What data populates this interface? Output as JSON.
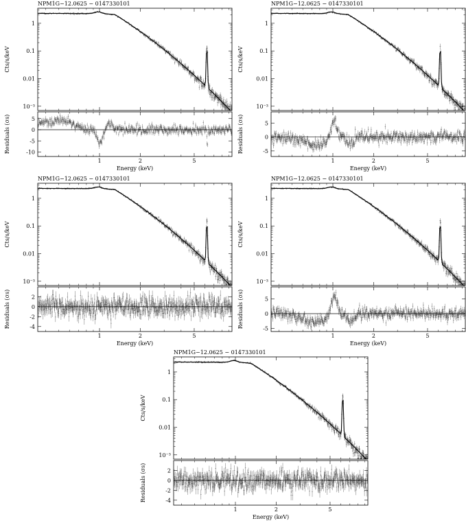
{
  "figure": {
    "x_label": "Energy (keV)",
    "y_label_top": "Cts/s/keV",
    "y_label_bottom": "Residuals (σs)",
    "spectrum_ytick_labels": [
      "1",
      "0.1",
      "0.01",
      "10⁻³"
    ],
    "x_tick_labels": [
      "1",
      "2",
      "5"
    ]
  },
  "chart_data": [
    {
      "type": "line",
      "title": "NPM1G−12.0625 − 0147330101",
      "xlabel": "Energy (keV)",
      "ylabel": "Cts/s/keV",
      "xscale": "log",
      "yscale": "log",
      "xlim": [
        0.35,
        9.5
      ],
      "ylim": [
        0.0007,
        3.5
      ],
      "spectrum_profile": "model",
      "line_energy": 6.2,
      "residuals": {
        "ylabel": "Residuals (σs)",
        "ylim": [
          -12,
          8
        ],
        "yticks": [
          5,
          0,
          -5,
          -10
        ],
        "pattern": "dip",
        "line_dip": true
      }
    },
    {
      "type": "line",
      "title": "NPM1G−12.0625 − 0147330101",
      "xlabel": "Energy (keV)",
      "ylabel": "Cts/s/keV",
      "xscale": "log",
      "yscale": "log",
      "xlim": [
        0.35,
        9.5
      ],
      "ylim": [
        0.0007,
        3.5
      ],
      "spectrum_profile": "model",
      "line_energy": 6.2,
      "residuals": {
        "ylabel": "Residuals (σs)",
        "ylim": [
          -7,
          9
        ],
        "yticks": [
          5,
          0,
          -5
        ],
        "pattern": "bump",
        "line_dip": false
      }
    },
    {
      "type": "line",
      "title": "NPM1G−12.0625 − 0147330101",
      "xlabel": "Energy (keV)",
      "ylabel": "Cts/s/keV",
      "xscale": "log",
      "yscale": "log",
      "xlim": [
        0.35,
        9.5
      ],
      "ylim": [
        0.0007,
        3.5
      ],
      "spectrum_profile": "model",
      "line_energy": 6.2,
      "residuals": {
        "ylabel": "Residuals (σs)",
        "ylim": [
          -5,
          4
        ],
        "yticks": [
          2,
          0,
          -2,
          -4
        ],
        "pattern": "flat",
        "line_dip": false
      }
    },
    {
      "type": "line",
      "title": "NPM1G−12.0625 − 0147330101",
      "xlabel": "Energy (keV)",
      "ylabel": "Cts/s/keV",
      "xscale": "log",
      "yscale": "log",
      "xlim": [
        0.35,
        9.5
      ],
      "ylim": [
        0.0007,
        3.5
      ],
      "spectrum_profile": "model",
      "line_energy": 6.2,
      "residuals": {
        "ylabel": "Residuals (σs)",
        "ylim": [
          -6,
          9
        ],
        "yticks": [
          5,
          0,
          -5
        ],
        "pattern": "bump",
        "line_dip": false
      }
    },
    {
      "type": "line",
      "title": "NPM1G−12.0625 − 0147330101",
      "xlabel": "Energy (keV)",
      "ylabel": "Cts/s/keV",
      "xscale": "log",
      "yscale": "log",
      "xlim": [
        0.35,
        9.5
      ],
      "ylim": [
        0.0007,
        3.5
      ],
      "spectrum_profile": "model",
      "line_energy": 6.2,
      "residuals": {
        "ylabel": "Residuals (σs)",
        "ylim": [
          -5,
          4
        ],
        "yticks": [
          2,
          0,
          -2,
          -4
        ],
        "pattern": "flat",
        "line_dip": false
      }
    }
  ]
}
